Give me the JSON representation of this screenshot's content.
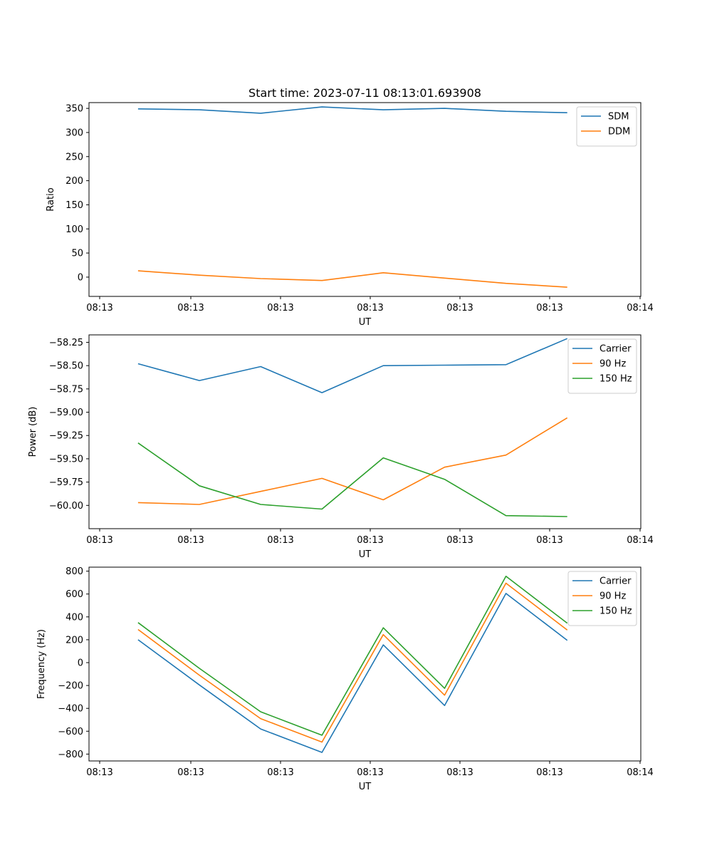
{
  "figure": {
    "title": "Start time: 2023-07-11 08:13:01.693908"
  },
  "chart_data": [
    {
      "type": "line",
      "title": "Start time: 2023-07-11 08:13:01.693908",
      "xlabel": "UT",
      "ylabel": "Ratio",
      "x_ticks": [
        "08:13",
        "08:13",
        "08:13",
        "08:13",
        "08:13",
        "08:13",
        "08:14"
      ],
      "y_ticks": [
        "0",
        "50",
        "100",
        "150",
        "200",
        "250",
        "300",
        "350"
      ],
      "y_tick_values": [
        0,
        50,
        100,
        150,
        200,
        250,
        300,
        350
      ],
      "ylim": [
        -40,
        362
      ],
      "x": [
        1,
        2,
        3,
        4,
        5,
        6,
        7,
        8
      ],
      "xlim": [
        0.2,
        9.2
      ],
      "legend_position": "top-right",
      "series": [
        {
          "name": "SDM",
          "color": "#1f77b4",
          "values": [
            349,
            347,
            340,
            353,
            347,
            350,
            344,
            341
          ]
        },
        {
          "name": "DDM",
          "color": "#ff7f0e",
          "values": [
            13,
            4,
            -3,
            -7,
            9,
            -2,
            -13,
            -21
          ]
        }
      ]
    },
    {
      "type": "line",
      "xlabel": "UT",
      "ylabel": "Power (dB)",
      "x_ticks": [
        "08:13",
        "08:13",
        "08:13",
        "08:13",
        "08:13",
        "08:13",
        "08:14"
      ],
      "y_ticks": [
        "−60.00",
        "−59.75",
        "−59.50",
        "−59.25",
        "−59.00",
        "−58.75",
        "−58.50",
        "−58.25"
      ],
      "y_tick_values": [
        -60.0,
        -59.75,
        -59.5,
        -59.25,
        -59.0,
        -58.75,
        -58.5,
        -58.25
      ],
      "ylim": [
        -60.25,
        -58.17
      ],
      "x": [
        1,
        2,
        3,
        4,
        5,
        6,
        7,
        8
      ],
      "xlim": [
        0.2,
        9.2
      ],
      "legend_position": "top-right",
      "series": [
        {
          "name": "Carrier",
          "color": "#1f77b4",
          "values": [
            -58.48,
            -58.66,
            -58.51,
            -58.79,
            -58.5,
            -58.495,
            -58.49,
            -58.21
          ]
        },
        {
          "name": "90 Hz",
          "color": "#ff7f0e",
          "values": [
            -59.97,
            -59.99,
            -59.85,
            -59.71,
            -59.94,
            -59.59,
            -59.46,
            -59.06
          ]
        },
        {
          "name": "150 Hz",
          "color": "#2ca02c",
          "values": [
            -59.33,
            -59.79,
            -59.99,
            -60.04,
            -59.49,
            -59.72,
            -60.11,
            -60.12
          ]
        }
      ]
    },
    {
      "type": "line",
      "xlabel": "UT",
      "ylabel": "Frequency (Hz)",
      "x_ticks": [
        "08:13",
        "08:13",
        "08:13",
        "08:13",
        "08:13",
        "08:13",
        "08:14"
      ],
      "y_ticks": [
        "−800",
        "−600",
        "−400",
        "−200",
        "0",
        "200",
        "400",
        "600",
        "800"
      ],
      "y_tick_values": [
        -800,
        -600,
        -400,
        -200,
        0,
        200,
        400,
        600,
        800
      ],
      "ylim": [
        -860,
        835
      ],
      "x": [
        1,
        2,
        3,
        4,
        5,
        6,
        7,
        8
      ],
      "xlim": [
        0.2,
        9.2
      ],
      "legend_position": "top-right",
      "series": [
        {
          "name": "Carrier",
          "color": "#1f77b4",
          "values": [
            200,
            -195,
            -580,
            -785,
            155,
            -375,
            605,
            195
          ]
        },
        {
          "name": "90 Hz",
          "color": "#ff7f0e",
          "values": [
            290,
            -110,
            -490,
            -695,
            245,
            -285,
            695,
            285
          ]
        },
        {
          "name": "150 Hz",
          "color": "#2ca02c",
          "values": [
            350,
            -50,
            -430,
            -635,
            305,
            -225,
            755,
            345
          ]
        }
      ]
    }
  ]
}
